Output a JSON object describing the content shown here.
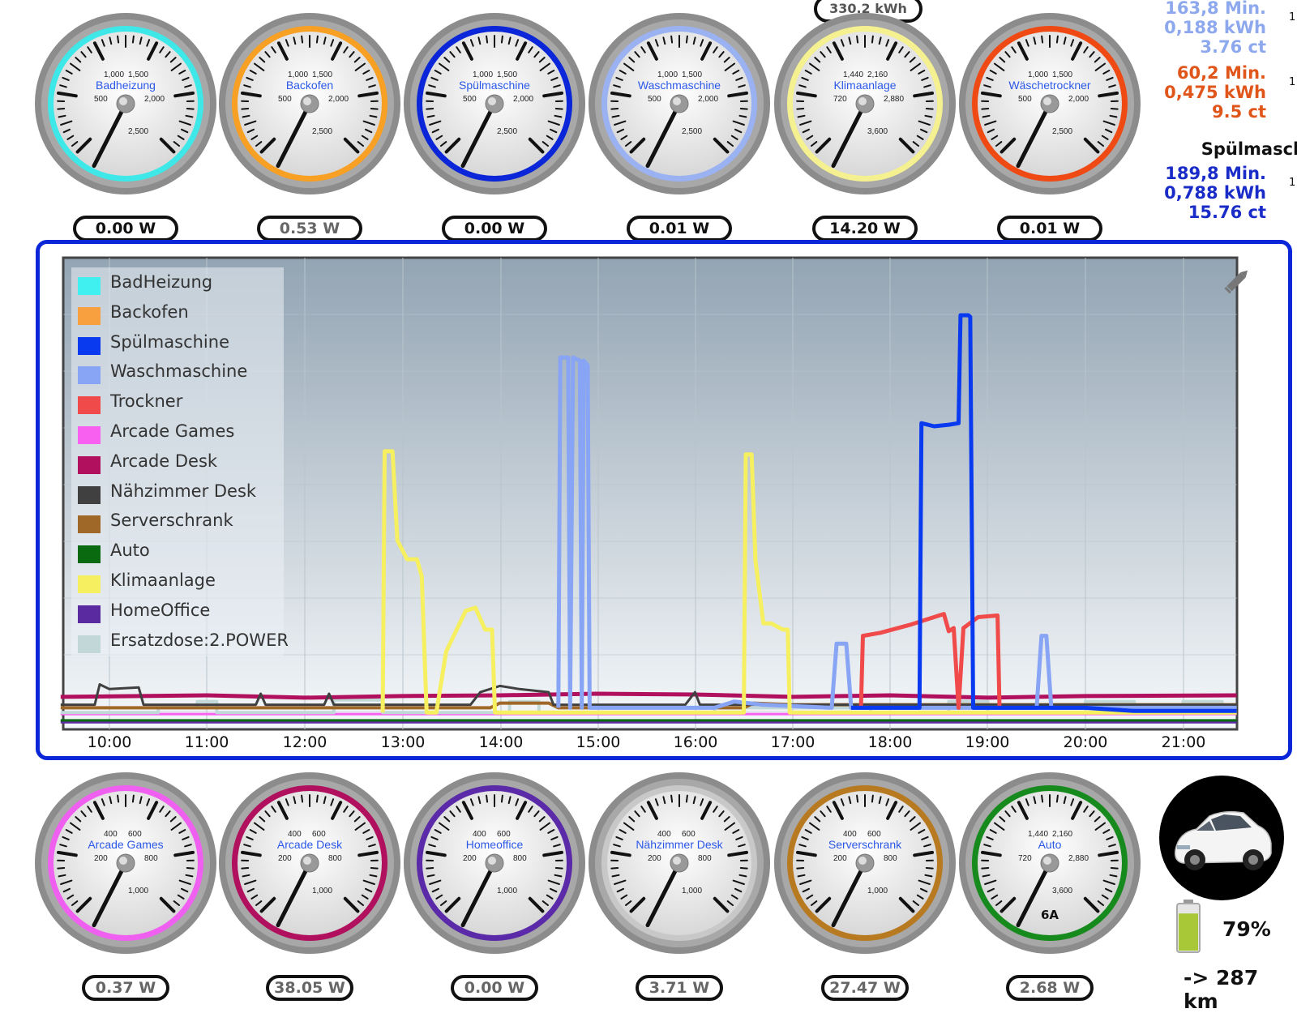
{
  "top_right_pill": "330.2 kWh",
  "side_stats": [
    {
      "min": "163,8 Min.",
      "kwh": "0,188 kWh",
      "ct": "3.76 ct",
      "color": "#8ea8ee",
      "one": "1"
    },
    {
      "min": "60,2 Min.",
      "kwh": "0,475 kWh",
      "ct": "9.5 ct",
      "color": "#e0561a",
      "one": "1"
    },
    {
      "label": "Spülmasch",
      "min": "189,8 Min.",
      "kwh": "0,788 kWh",
      "ct": "15.76 ct",
      "color": "#1a2cc8",
      "one": "1"
    }
  ],
  "top_gauges": [
    {
      "title": "Badheizung",
      "ring": "#3fe8e8",
      "ticks": [
        "500",
        "1,000",
        "1,500",
        "2,000",
        "2,500"
      ],
      "value": "0.00 W",
      "dim": false
    },
    {
      "title": "Backofen",
      "ring": "#f7a024",
      "ticks": [
        "500",
        "1,000",
        "1,500",
        "2,000",
        "2,500"
      ],
      "value": "0.53 W",
      "dim": true
    },
    {
      "title": "Spülmaschine",
      "ring": "#0a26d8",
      "ticks": [
        "500",
        "1,000",
        "1,500",
        "2,000",
        "2,500"
      ],
      "value": "0.00 W",
      "dim": false
    },
    {
      "title": "Waschmaschine",
      "ring": "#9bb2f2",
      "ticks": [
        "500",
        "1,000",
        "1,500",
        "2,000",
        "2,500"
      ],
      "value": "0.01 W",
      "dim": false
    },
    {
      "title": "Klimaanlage",
      "ring": "#f5f090",
      "ticks": [
        "720",
        "1,440",
        "2,160",
        "2,880",
        "3,600"
      ],
      "value": "14.20 W",
      "dim": false
    },
    {
      "title": "Wäschetrockner",
      "ring": "#f04a14",
      "ticks": [
        "500",
        "1,000",
        "1,500",
        "2,000",
        "2,500"
      ],
      "value": "0.01 W",
      "dim": false
    }
  ],
  "bottom_gauges": [
    {
      "title": "Arcade Games",
      "ring": "#f060f0",
      "ticks": [
        "200",
        "400",
        "600",
        "800",
        "1,000"
      ],
      "value": "0.37 W",
      "dim": true,
      "extra": ""
    },
    {
      "title": "Arcade Desk",
      "ring": "#b0105e",
      "ticks": [
        "200",
        "400",
        "600",
        "800",
        "1,000"
      ],
      "value": "38.05 W",
      "dim": true,
      "extra": ""
    },
    {
      "title": "Homeoffice",
      "ring": "#5a2aa8",
      "ticks": [
        "200",
        "400",
        "600",
        "800",
        "1,000"
      ],
      "value": "0.00 W",
      "dim": true,
      "extra": ""
    },
    {
      "title": "Nähzimmer Desk",
      "ring": "#c8c8c8",
      "ticks": [
        "200",
        "400",
        "600",
        "800",
        "1,000"
      ],
      "value": "3.71 W",
      "dim": true,
      "extra": ""
    },
    {
      "title": "Serverschrank",
      "ring": "#b87a20",
      "ticks": [
        "200",
        "400",
        "600",
        "800",
        "1,000"
      ],
      "value": "27.47 W",
      "dim": true,
      "extra": ""
    },
    {
      "title": "Auto",
      "ring": "#168a1c",
      "ticks": [
        "720",
        "1,440",
        "2,160",
        "2,880",
        "3,600"
      ],
      "value": "2.68 W",
      "dim": true,
      "extra": "6A"
    }
  ],
  "car": {
    "battery_percent_label": "79%",
    "battery_level": 0.79,
    "range_label": "-> 287 km",
    "battery_color": "#a8c838"
  },
  "chart_data": {
    "type": "line",
    "x_ticks": [
      "10:00",
      "11:00",
      "12:00",
      "13:00",
      "14:00",
      "15:00",
      "16:00",
      "17:00",
      "18:00",
      "19:00",
      "20:00",
      "21:00"
    ],
    "series": [
      {
        "name": "BadHeizung",
        "color": "#40f0f0"
      },
      {
        "name": "Backofen",
        "color": "#f8a040"
      },
      {
        "name": "Spülmaschine",
        "color": "#0a3af0"
      },
      {
        "name": "Waschmaschine",
        "color": "#88a4f4"
      },
      {
        "name": "Trockner",
        "color": "#f04a4a"
      },
      {
        "name": "Arcade Games",
        "color": "#f860f0"
      },
      {
        "name": "Arcade Desk",
        "color": "#b0105e"
      },
      {
        "name": "Nähzimmer Desk",
        "color": "#404040"
      },
      {
        "name": "Serverschrank",
        "color": "#a06828"
      },
      {
        "name": "Auto",
        "color": "#0a6a10"
      },
      {
        "name": "Klimaanlage",
        "color": "#f6f060"
      },
      {
        "name": "HomeOffice",
        "color": "#5a2aa0"
      },
      {
        "name": "Ersatzdose:2.POWER",
        "color": "#c2d8d8"
      }
    ],
    "legend_position": "top-left",
    "grid": true
  }
}
